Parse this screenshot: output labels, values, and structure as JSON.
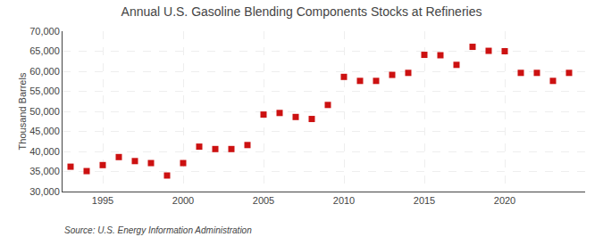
{
  "chart_data": {
    "type": "scatter",
    "title": "Annual U.S. Gasoline Blending Components Stocks at Refineries",
    "ylabel": "Thousand Barrels",
    "annotations": [
      "Source: U.S. Energy Information Administration"
    ],
    "x": [
      1993,
      1994,
      1995,
      1996,
      1997,
      1998,
      1999,
      2000,
      2001,
      2002,
      2003,
      2004,
      2005,
      2006,
      2007,
      2008,
      2009,
      2010,
      2011,
      2012,
      2013,
      2014,
      2015,
      2016,
      2017,
      2018,
      2019,
      2020,
      2021,
      2022,
      2023,
      2024
    ],
    "values": [
      36200,
      35100,
      36600,
      38600,
      37600,
      37100,
      34000,
      37100,
      41200,
      40600,
      40600,
      41600,
      49200,
      49600,
      48600,
      48100,
      51600,
      58600,
      57600,
      57600,
      59100,
      59600,
      64100,
      64000,
      61600,
      66100,
      65100,
      65000,
      59600,
      59600,
      57600,
      59600
    ],
    "color": "#cc1111",
    "marker": "square",
    "xlim": [
      1992.5,
      2025
    ],
    "xticks": [
      1995,
      2000,
      2005,
      2010,
      2015,
      2020
    ],
    "ylim": [
      30000,
      70000
    ],
    "yticks": [
      {
        "value": 30000,
        "label": "30,000"
      },
      {
        "value": 35000,
        "label": "35,000"
      },
      {
        "value": 40000,
        "label": "40,000"
      },
      {
        "value": 45000,
        "label": "45,000"
      },
      {
        "value": 50000,
        "label": "50,000"
      },
      {
        "value": 55000,
        "label": "55,000"
      },
      {
        "value": 60000,
        "label": "60,000"
      },
      {
        "value": 65000,
        "label": "65,000"
      },
      {
        "value": 70000,
        "label": "70,000"
      }
    ],
    "grid": true
  }
}
